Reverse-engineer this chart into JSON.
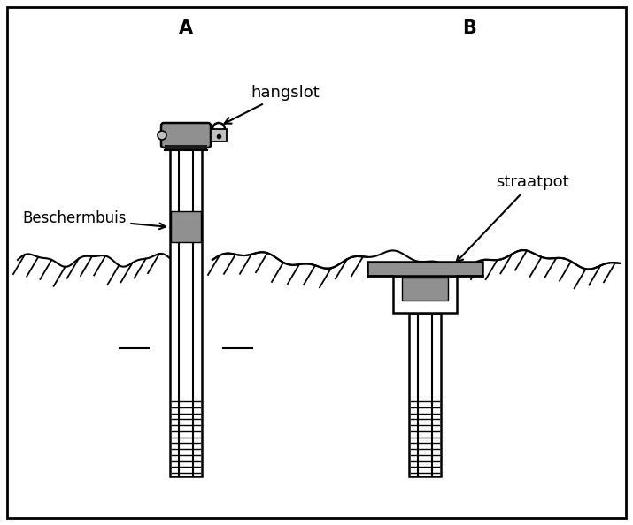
{
  "bg_color": "#ffffff",
  "border_color": "#000000",
  "gray_color": "#909090",
  "light_gray": "#c0c0c0",
  "title_A": "A",
  "title_B": "B",
  "label_hangslot": "hangslot",
  "label_beschermbuis": "Beschermbuis",
  "label_straatpot": "straatpot",
  "figsize": [
    7.15,
    5.94
  ],
  "dpi": 100
}
